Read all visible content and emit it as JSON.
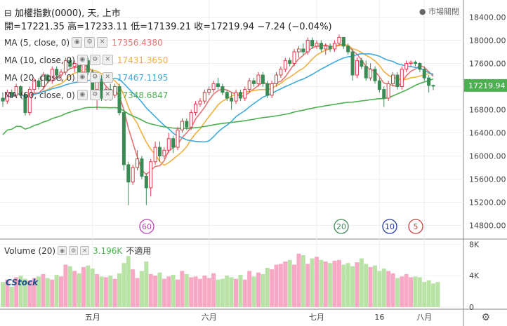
{
  "header": {
    "symbol": "⊟ 加權指數(0000), 天, 上市",
    "open_label": "開",
    "open": "=17221.35",
    "high_label": "高",
    "high": "=17233.11",
    "low_label": "低",
    "low": "=17139.21",
    "close_label": "收",
    "close": "=17219.94",
    "change": "−7.24 (−0.04%)",
    "market_status": "● 市場關閉"
  },
  "indicators": [
    {
      "label": "MA (5, close, 0)",
      "value": "17356.4380",
      "color": "#e57373"
    },
    {
      "label": "MA (10, close, 0)",
      "value": "17431.3650",
      "color": "#f0b040"
    },
    {
      "label": "MA (20, close, 0)",
      "value": "17467.1195",
      "color": "#3fa8dc"
    },
    {
      "label": "MA (60, close, 0)",
      "value": "17348.6847",
      "color": "#4caf50"
    }
  ],
  "volume_header": {
    "label": "Volume (20)",
    "value": "3.196K",
    "status": "不適用"
  },
  "logo": "CStock",
  "colors": {
    "up": "#e0374a",
    "down": "#3a8a54",
    "vol_up": "#f7a8c4",
    "vol_down": "#b9e3a6"
  },
  "chart_data": {
    "type": "candlestick",
    "price_axis": {
      "ticks": [
        14800,
        15200,
        15600,
        16000,
        16400,
        16800,
        17200,
        17600,
        18000,
        18400
      ],
      "tick_labels": [
        "14800.00",
        "15200.00",
        "15600.00",
        "16000.00",
        "16400.00",
        "16800.00",
        "17200.00",
        "17600.00",
        "18000.00",
        "18400.00"
      ],
      "range": [
        14600,
        18600
      ]
    },
    "volume_axis": {
      "ticks": [
        0,
        4000,
        8000
      ],
      "tick_labels": [
        "0",
        "4K",
        "8K"
      ],
      "range": [
        0,
        8300
      ]
    },
    "x_labels": [
      "五月",
      "六月",
      "七月",
      "16",
      "八月"
    ],
    "last_price_label": "17219.94",
    "ma_markers": [
      {
        "label": "60",
        "color": "#b544b5"
      },
      {
        "label": "20",
        "color": "#3a8a54"
      },
      {
        "label": "10",
        "color": "#2233aa"
      },
      {
        "label": "5",
        "color": "#d53a3a"
      }
    ],
    "candles": [
      {
        "o": 17000,
        "h": 17100,
        "l": 16850,
        "c": 16950
      },
      {
        "o": 16950,
        "h": 17150,
        "l": 16900,
        "c": 17100
      },
      {
        "o": 17100,
        "h": 17150,
        "l": 17000,
        "c": 17050
      },
      {
        "o": 17050,
        "h": 17250,
        "l": 17000,
        "c": 17200
      },
      {
        "o": 17200,
        "h": 17220,
        "l": 17000,
        "c": 17050
      },
      {
        "o": 17050,
        "h": 17100,
        "l": 16700,
        "c": 16750
      },
      {
        "o": 16750,
        "h": 17200,
        "l": 16700,
        "c": 17150
      },
      {
        "o": 17150,
        "h": 17350,
        "l": 17100,
        "c": 17300
      },
      {
        "o": 17300,
        "h": 17350,
        "l": 17150,
        "c": 17200
      },
      {
        "o": 17200,
        "h": 17450,
        "l": 17150,
        "c": 17400
      },
      {
        "o": 17400,
        "h": 17420,
        "l": 17250,
        "c": 17300
      },
      {
        "o": 17300,
        "h": 17550,
        "l": 17250,
        "c": 17500
      },
      {
        "o": 17500,
        "h": 17550,
        "l": 17350,
        "c": 17400
      },
      {
        "o": 17400,
        "h": 17500,
        "l": 17300,
        "c": 17450
      },
      {
        "o": 17450,
        "h": 17700,
        "l": 17400,
        "c": 17650
      },
      {
        "o": 17650,
        "h": 17700,
        "l": 17500,
        "c": 17550
      },
      {
        "o": 17550,
        "h": 17650,
        "l": 17450,
        "c": 17600
      },
      {
        "o": 17600,
        "h": 17620,
        "l": 17400,
        "c": 17450
      },
      {
        "o": 17450,
        "h": 17700,
        "l": 17400,
        "c": 17650
      },
      {
        "o": 17650,
        "h": 17700,
        "l": 17400,
        "c": 17450
      },
      {
        "o": 17450,
        "h": 17500,
        "l": 17100,
        "c": 17150
      },
      {
        "o": 17150,
        "h": 17350,
        "l": 16800,
        "c": 17300
      },
      {
        "o": 17300,
        "h": 17400,
        "l": 16950,
        "c": 17000
      },
      {
        "o": 17000,
        "h": 17200,
        "l": 16950,
        "c": 17150
      },
      {
        "o": 17150,
        "h": 17250,
        "l": 16950,
        "c": 17050
      },
      {
        "o": 17050,
        "h": 17250,
        "l": 17000,
        "c": 17200
      },
      {
        "o": 17200,
        "h": 17250,
        "l": 16700,
        "c": 16750
      },
      {
        "o": 16750,
        "h": 16800,
        "l": 15750,
        "c": 15850
      },
      {
        "o": 15850,
        "h": 15900,
        "l": 15150,
        "c": 15550
      },
      {
        "o": 15550,
        "h": 15850,
        "l": 15500,
        "c": 15800
      },
      {
        "o": 15800,
        "h": 16100,
        "l": 15750,
        "c": 15950
      },
      {
        "o": 15950,
        "h": 16000,
        "l": 15600,
        "c": 15650
      },
      {
        "o": 15650,
        "h": 15700,
        "l": 15150,
        "c": 15450
      },
      {
        "o": 15450,
        "h": 15950,
        "l": 15300,
        "c": 15900
      },
      {
        "o": 15900,
        "h": 16250,
        "l": 15850,
        "c": 16150
      },
      {
        "o": 16150,
        "h": 16250,
        "l": 15900,
        "c": 16000
      },
      {
        "o": 16000,
        "h": 16150,
        "l": 15950,
        "c": 16100
      },
      {
        "o": 16100,
        "h": 16400,
        "l": 16050,
        "c": 16300
      },
      {
        "o": 16300,
        "h": 16350,
        "l": 16050,
        "c": 16150
      },
      {
        "o": 16150,
        "h": 16500,
        "l": 16100,
        "c": 16450
      },
      {
        "o": 16450,
        "h": 16650,
        "l": 16400,
        "c": 16600
      },
      {
        "o": 16600,
        "h": 16650,
        "l": 16450,
        "c": 16500
      },
      {
        "o": 16500,
        "h": 16800,
        "l": 16450,
        "c": 16750
      },
      {
        "o": 16750,
        "h": 16950,
        "l": 16700,
        "c": 16900
      },
      {
        "o": 16900,
        "h": 17000,
        "l": 16850,
        "c": 16950
      },
      {
        "o": 16950,
        "h": 17150,
        "l": 16900,
        "c": 17100
      },
      {
        "o": 17100,
        "h": 17200,
        "l": 17050,
        "c": 17150
      },
      {
        "o": 17150,
        "h": 17300,
        "l": 17100,
        "c": 17250
      },
      {
        "o": 17250,
        "h": 17350,
        "l": 17150,
        "c": 17200
      },
      {
        "o": 17200,
        "h": 17250,
        "l": 17050,
        "c": 17100
      },
      {
        "o": 17100,
        "h": 17150,
        "l": 16950,
        "c": 17000
      },
      {
        "o": 17000,
        "h": 17100,
        "l": 16800,
        "c": 16950
      },
      {
        "o": 16950,
        "h": 17150,
        "l": 16900,
        "c": 17100
      },
      {
        "o": 17100,
        "h": 17150,
        "l": 16950,
        "c": 17000
      },
      {
        "o": 17000,
        "h": 17200,
        "l": 16950,
        "c": 17150
      },
      {
        "o": 17150,
        "h": 17350,
        "l": 17100,
        "c": 17300
      },
      {
        "o": 17300,
        "h": 17350,
        "l": 17200,
        "c": 17250
      },
      {
        "o": 17250,
        "h": 17450,
        "l": 17200,
        "c": 17400
      },
      {
        "o": 17400,
        "h": 17450,
        "l": 17200,
        "c": 17250
      },
      {
        "o": 17250,
        "h": 17300,
        "l": 17000,
        "c": 17050
      },
      {
        "o": 17050,
        "h": 17300,
        "l": 17000,
        "c": 17250
      },
      {
        "o": 17250,
        "h": 17450,
        "l": 17200,
        "c": 17400
      },
      {
        "o": 17400,
        "h": 17550,
        "l": 17350,
        "c": 17500
      },
      {
        "o": 17500,
        "h": 17700,
        "l": 17450,
        "c": 17650
      },
      {
        "o": 17650,
        "h": 17700,
        "l": 17550,
        "c": 17600
      },
      {
        "o": 17600,
        "h": 17850,
        "l": 17550,
        "c": 17800
      },
      {
        "o": 17800,
        "h": 17900,
        "l": 17700,
        "c": 17850
      },
      {
        "o": 17850,
        "h": 17950,
        "l": 17750,
        "c": 17800
      },
      {
        "o": 17800,
        "h": 18050,
        "l": 17750,
        "c": 18000
      },
      {
        "o": 18000,
        "h": 18050,
        "l": 17850,
        "c": 17900
      },
      {
        "o": 17900,
        "h": 18000,
        "l": 17850,
        "c": 17950
      },
      {
        "o": 17950,
        "h": 18000,
        "l": 17800,
        "c": 17850
      },
      {
        "o": 17850,
        "h": 17950,
        "l": 17750,
        "c": 17900
      },
      {
        "o": 17900,
        "h": 17950,
        "l": 17800,
        "c": 17850
      },
      {
        "o": 17850,
        "h": 18000,
        "l": 17800,
        "c": 17950
      },
      {
        "o": 17950,
        "h": 18100,
        "l": 17900,
        "c": 18050
      },
      {
        "o": 18050,
        "h": 18050,
        "l": 17850,
        "c": 17900
      },
      {
        "o": 17900,
        "h": 17950,
        "l": 17750,
        "c": 17800
      },
      {
        "o": 17800,
        "h": 17850,
        "l": 17300,
        "c": 17400
      },
      {
        "o": 17400,
        "h": 17700,
        "l": 17350,
        "c": 17650
      },
      {
        "o": 17650,
        "h": 17700,
        "l": 17500,
        "c": 17550
      },
      {
        "o": 17550,
        "h": 17650,
        "l": 17300,
        "c": 17350
      },
      {
        "o": 17350,
        "h": 17600,
        "l": 17300,
        "c": 17500
      },
      {
        "o": 17500,
        "h": 17550,
        "l": 17250,
        "c": 17300
      },
      {
        "o": 17300,
        "h": 17350,
        "l": 17100,
        "c": 17150
      },
      {
        "o": 17150,
        "h": 17200,
        "l": 16850,
        "c": 17000
      },
      {
        "o": 17000,
        "h": 17300,
        "l": 16950,
        "c": 17250
      },
      {
        "o": 17250,
        "h": 17450,
        "l": 17200,
        "c": 17400
      },
      {
        "o": 17400,
        "h": 17450,
        "l": 17150,
        "c": 17200
      },
      {
        "o": 17200,
        "h": 17550,
        "l": 17150,
        "c": 17500
      },
      {
        "o": 17500,
        "h": 17650,
        "l": 17450,
        "c": 17600
      },
      {
        "o": 17600,
        "h": 17650,
        "l": 17550,
        "c": 17620
      },
      {
        "o": 17620,
        "h": 17650,
        "l": 17550,
        "c": 17600
      },
      {
        "o": 17600,
        "h": 17620,
        "l": 17450,
        "c": 17500
      },
      {
        "o": 17500,
        "h": 17550,
        "l": 17300,
        "c": 17350
      },
      {
        "o": 17350,
        "h": 17400,
        "l": 17100,
        "c": 17220
      },
      {
        "o": 17221,
        "h": 17233,
        "l": 17139,
        "c": 17219
      }
    ],
    "volumes": [
      3.2,
      3.5,
      2.6,
      3.8,
      4.0,
      3.6,
      3.4,
      3.7,
      3.9,
      4.2,
      3.7,
      3.5,
      4.1,
      3.9,
      5.4,
      5.2,
      4.6,
      4.3,
      5.1,
      5.3,
      4.9,
      4.2,
      3.9,
      3.8,
      4.0,
      3.6,
      4.3,
      5.6,
      6.5,
      4.8,
      3.7,
      4.6,
      5.8,
      4.2,
      4.0,
      4.4,
      3.6,
      3.9,
      4.1,
      3.5,
      4.6,
      4.2,
      3.8,
      3.9,
      3.6,
      4.0,
      3.7,
      4.3,
      3.5,
      3.6,
      4.0,
      3.8,
      3.6,
      4.1,
      3.5,
      4.6,
      3.9,
      4.4,
      4.2,
      5.0,
      4.8,
      5.4,
      5.5,
      5.8,
      6.0,
      5.4,
      6.8,
      6.6,
      5.5,
      6.2,
      6.4,
      6.0,
      5.8,
      5.6,
      5.9,
      6.0,
      5.4,
      5.6,
      5.2,
      5.7,
      6.2,
      5.5,
      5.1,
      5.3,
      4.6,
      4.9,
      4.6,
      4.3,
      3.7,
      3.9,
      4.2,
      3.8,
      3.9,
      3.8,
      3.2,
      3.4,
      3.0,
      3.2
    ]
  }
}
